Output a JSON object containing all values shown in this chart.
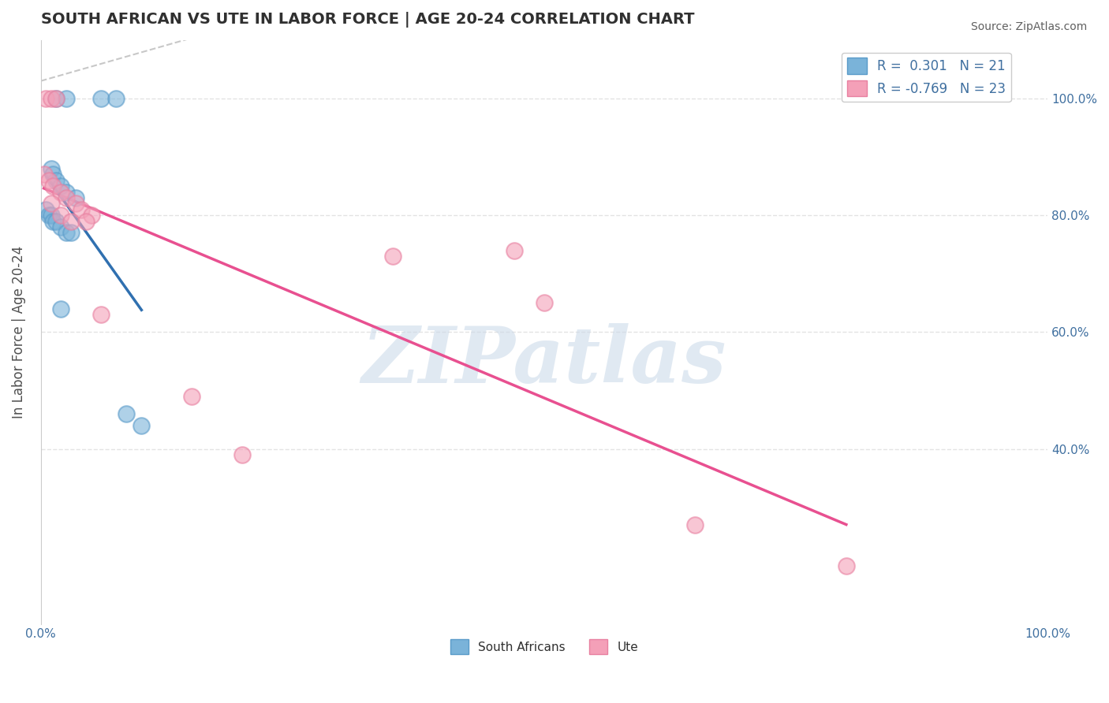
{
  "title": "SOUTH AFRICAN VS UTE IN LABOR FORCE | AGE 20-24 CORRELATION CHART",
  "source": "Source: ZipAtlas.com",
  "ylabel": "In Labor Force | Age 20-24",
  "watermark": "ZIPatlas",
  "legend_label_south_africans": "South Africans",
  "legend_label_ute": "Ute",
  "legend_line1": "R =  0.301   N = 21",
  "legend_line2": "R = -0.769   N = 23",
  "blue_x": [
    1.5,
    2.5,
    6.0,
    7.5,
    1.0,
    1.2,
    1.5,
    2.0,
    2.5,
    3.5,
    0.5,
    0.8,
    1.0,
    1.2,
    1.5,
    2.0,
    2.5,
    3.0,
    2.0,
    8.5,
    10.0
  ],
  "blue_y": [
    100,
    100,
    100,
    100,
    88,
    87,
    86,
    85,
    84,
    83,
    81,
    80,
    80,
    79,
    79,
    78,
    77,
    77,
    64,
    46,
    44
  ],
  "pink_x": [
    0.5,
    1.0,
    1.5,
    0.3,
    0.8,
    1.2,
    2.0,
    2.5,
    3.5,
    4.0,
    5.0,
    1.0,
    2.0,
    3.0,
    4.5,
    6.0,
    15.0,
    35.0,
    50.0,
    65.0,
    80.0,
    47.0,
    20.0
  ],
  "pink_y": [
    100,
    100,
    100,
    87,
    86,
    85,
    84,
    83,
    82,
    81,
    80,
    82,
    80,
    79,
    79,
    63,
    49,
    73,
    65,
    27,
    20,
    74,
    39
  ],
  "bg_color": "#ffffff",
  "grid_color": "#e0e0e0",
  "blue_dot_color": "#7ab3d9",
  "blue_dot_edge": "#5a9bc9",
  "pink_dot_color": "#f4a0b8",
  "pink_dot_edge": "#e880a0",
  "blue_line_color": "#3070b0",
  "pink_line_color": "#e85090",
  "ref_line_color": "#c8c8c8",
  "watermark_color": "#c8d8e8",
  "title_color": "#303030",
  "source_color": "#606060",
  "axis_label_color": "#505050",
  "tick_color": "#4070a0",
  "legend_text_color": "#4070a0",
  "xlim": [
    0,
    100
  ],
  "ylim": [
    10,
    110
  ],
  "yticks": [
    40,
    60,
    80,
    100
  ],
  "ytick_labels": [
    "40.0%",
    "60.0%",
    "80.0%",
    "100.0%"
  ],
  "xtick_labels": [
    "0.0%",
    "100.0%"
  ],
  "title_fontsize": 14,
  "axis_label_fontsize": 12,
  "tick_fontsize": 11,
  "dot_size": 220,
  "dot_alpha": 0.6,
  "line_width": 2.5
}
